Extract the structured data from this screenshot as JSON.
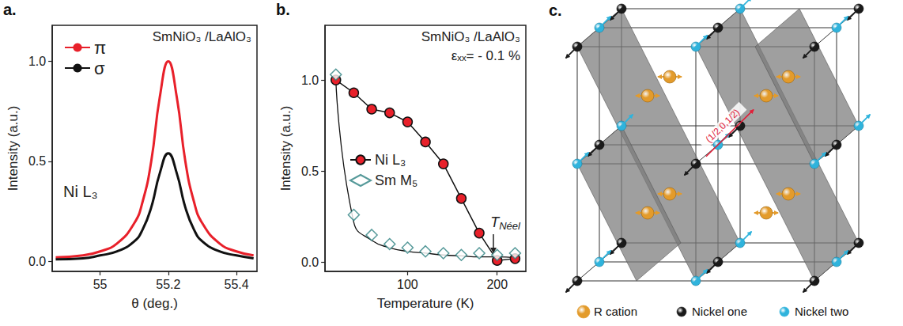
{
  "chart_data": [
    {
      "type": "line",
      "panel_label": "a.",
      "x_label": "θ (deg.)",
      "y_label": "Intensity (a.u.)",
      "annotations": [
        {
          "text": "SmNiO₃ /LaAlO₃"
        },
        {
          "text": "Ni L₃"
        }
      ],
      "xlim": [
        54.86,
        55.46
      ],
      "xticks": [
        55,
        55.2,
        55.4
      ],
      "ylim": [
        -0.05,
        1.18
      ],
      "yticks": [
        {
          "value": 0,
          "label": "0.0"
        },
        {
          "value": 0.5,
          "label": "0.5"
        },
        {
          "value": 1,
          "label": "1.0"
        }
      ],
      "x": [
        54.87,
        54.95,
        55.0,
        55.05,
        55.1,
        55.125,
        55.15,
        55.175,
        55.2,
        55.225,
        55.25,
        55.275,
        55.3,
        55.35,
        55.4,
        55.45
      ],
      "series": [
        {
          "name": "π",
          "color": "#e8202a",
          "type": "line",
          "marker": "none",
          "line_style": "solid",
          "values": [
            0.02,
            0.03,
            0.05,
            0.09,
            0.19,
            0.3,
            0.5,
            0.82,
            1.0,
            0.82,
            0.5,
            0.3,
            0.19,
            0.09,
            0.05,
            0.03
          ]
        },
        {
          "name": "σ",
          "color": "#111111",
          "type": "line",
          "marker": "none",
          "line_style": "solid",
          "values": [
            0.01,
            0.015,
            0.03,
            0.05,
            0.1,
            0.16,
            0.27,
            0.44,
            0.54,
            0.44,
            0.27,
            0.16,
            0.1,
            0.05,
            0.03,
            0.015
          ]
        }
      ],
      "legend": "upper left",
      "grid": false
    },
    {
      "type": "line",
      "panel_label": "b.",
      "x_label": "Temperature (K)",
      "y_label": "Intensity (a.u.)",
      "annotations": [
        {
          "text": "SmNiO₃ /LaAlO₃"
        },
        {
          "text": "εₓₓ= - 0.1 %"
        },
        {
          "text": "T",
          "subscript": "Néel"
        }
      ],
      "xlim": [
        8,
        232
      ],
      "xticks": [
        100,
        200
      ],
      "ylim": [
        -0.05,
        1.3
      ],
      "yticks": [
        {
          "value": 0,
          "label": "0.0"
        },
        {
          "value": 0.5,
          "label": "0.5"
        },
        {
          "value": 1,
          "label": "1.0"
        }
      ],
      "x": [
        20,
        40,
        60,
        80,
        100,
        120,
        140,
        160,
        180,
        200,
        220
      ],
      "series": [
        {
          "name": "Ni L₃",
          "color": "#e8202a",
          "type": "line",
          "marker": "circle",
          "line_style": "solid",
          "values": [
            1.0,
            0.93,
            0.84,
            0.82,
            0.77,
            0.66,
            0.54,
            0.35,
            0.16,
            0.01,
            0.02
          ]
        },
        {
          "name": "Sm M₅",
          "color": "#2a7f7f",
          "type": "scatter",
          "marker": "open diamond",
          "line_style": "none",
          "values": [
            1.03,
            0.26,
            0.15,
            0.1,
            0.08,
            0.06,
            0.05,
            0.04,
            0.05,
            0.04,
            0.05
          ]
        },
        {
          "color": "#111111",
          "type": "line",
          "marker": "none",
          "line_style": "solid",
          "values": [
            1.0,
            0.22,
            0.12,
            0.08,
            0.06,
            0.05,
            0.04,
            0.035,
            0.03,
            0.03,
            0.025
          ]
        }
      ],
      "legend": "center left",
      "grid": false
    }
  ],
  "diagram": {
    "panel_label": "c.",
    "vector_label": "(1/2,0,1/2)",
    "legend": [
      {
        "label": "R cation",
        "color": "#e39b2b"
      },
      {
        "label": "Nickel one",
        "color": "#1a1a1a"
      },
      {
        "label": "Nickel two",
        "color": "#2fb3dc"
      }
    ]
  }
}
